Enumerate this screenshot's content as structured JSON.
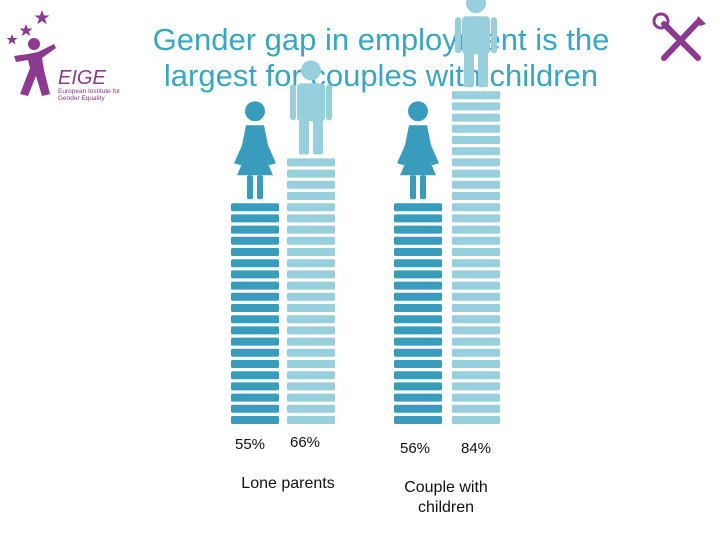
{
  "header": {
    "title": "Gender gap in employment is the largest for couples with children"
  },
  "logo": {
    "wordmark": "EIGE",
    "tagline": "European Institute for Gender Equality"
  },
  "colors": {
    "women": "#3a9cbc",
    "men": "#97cfdc",
    "title": "#3aa6c4",
    "logo": "#8b3a8f"
  },
  "icons": [
    "stars-icon",
    "eige-figure-icon",
    "woman-icon",
    "man-icon",
    "tools-icon"
  ],
  "chart_data": {
    "type": "bar",
    "categories": [
      "Lone parents",
      "Couple with children"
    ],
    "series": [
      {
        "values": [
          55,
          56
        ],
        "labels": [
          "55%",
          "56%"
        ]
      },
      {
        "values": [
          66,
          84
        ],
        "labels": [
          "66%",
          "84%"
        ]
      }
    ],
    "ylim": [
      0,
      100
    ]
  }
}
